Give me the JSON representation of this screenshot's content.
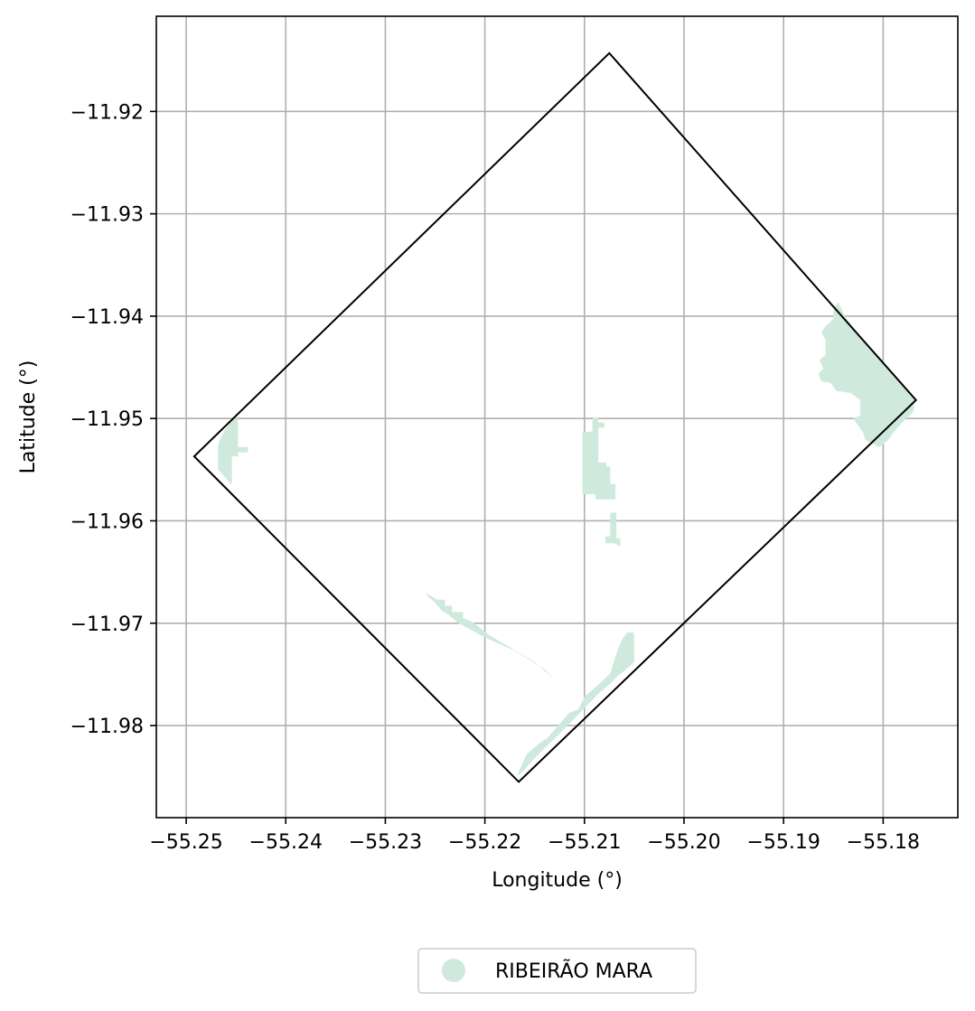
{
  "chart_data": {
    "type": "map",
    "xlabel": "Longitude (°)",
    "ylabel": "Latitude (°)",
    "xlim": [
      -55.253,
      -55.1725
    ],
    "ylim": [
      -11.989,
      -11.9107
    ],
    "grid": true,
    "x_ticks": [
      -55.25,
      -55.24,
      -55.23,
      -55.22,
      -55.21,
      -55.2,
      -55.19,
      -55.18
    ],
    "x_tick_labels": [
      "−55.25",
      "−55.24",
      "−55.23",
      "−55.22",
      "−55.21",
      "−55.20",
      "−55.19",
      "−55.18"
    ],
    "y_ticks": [
      -11.92,
      -11.93,
      -11.94,
      -11.95,
      -11.96,
      -11.97,
      -11.98
    ],
    "y_tick_labels": [
      "−11.92",
      "−11.93",
      "−11.94",
      "−11.95",
      "−11.96",
      "−11.97",
      "−11.98"
    ],
    "boundary": {
      "name": "",
      "stroke": "#000000",
      "coordinates": [
        [
          -55.2075,
          -11.9143
        ],
        [
          -55.1767,
          -11.9482
        ],
        [
          -55.2166,
          -11.9855
        ],
        [
          -55.2492,
          -11.9537
        ],
        [
          -55.2075,
          -11.9143
        ]
      ]
    },
    "legend": {
      "placement": "bottom-center",
      "entries": [
        {
          "label": "RIBEIRÃO MARA",
          "color": "#cfeadd",
          "marker": "circle"
        }
      ]
    },
    "areas": [
      {
        "name": "RIBEIRÃO MARA",
        "color": "#cfeadd",
        "polygons": [
          [
            [
              -55.2458,
              -11.9507
            ],
            [
              -55.2454,
              -11.95
            ],
            [
              -55.2448,
              -11.95
            ],
            [
              -55.2448,
              -11.9528
            ],
            [
              -55.2438,
              -11.9528
            ],
            [
              -55.2438,
              -11.9533
            ],
            [
              -55.2448,
              -11.9533
            ],
            [
              -55.2448,
              -11.9537
            ],
            [
              -55.2454,
              -11.9537
            ],
            [
              -55.2454,
              -11.9565
            ],
            [
              -55.2468,
              -11.955
            ],
            [
              -55.2468,
              -11.9527
            ],
            [
              -55.2466,
              -11.952
            ],
            [
              -55.2462,
              -11.9513
            ]
          ],
          [
            [
              -55.2102,
              -11.9513
            ],
            [
              -55.2092,
              -11.9513
            ],
            [
              -55.2092,
              -11.95
            ],
            [
              -55.209,
              -11.9499
            ],
            [
              -55.2086,
              -11.9499
            ],
            [
              -55.2086,
              -11.9504
            ],
            [
              -55.208,
              -11.9504
            ],
            [
              -55.208,
              -11.9509
            ],
            [
              -55.2086,
              -11.9509
            ],
            [
              -55.2086,
              -11.9543
            ],
            [
              -55.2078,
              -11.9543
            ],
            [
              -55.2078,
              -11.9547
            ],
            [
              -55.2074,
              -11.9547
            ],
            [
              -55.2074,
              -11.9564
            ],
            [
              -55.2069,
              -11.9564
            ],
            [
              -55.2069,
              -11.9579
            ],
            [
              -55.2089,
              -11.9579
            ],
            [
              -55.2089,
              -11.9574
            ],
            [
              -55.2102,
              -11.9574
            ]
          ],
          [
            [
              -55.2074,
              -11.9592
            ],
            [
              -55.2068,
              -11.9592
            ],
            [
              -55.2068,
              -11.9617
            ],
            [
              -55.2064,
              -11.9617
            ],
            [
              -55.2064,
              -11.9625
            ],
            [
              -55.207,
              -11.9622
            ],
            [
              -55.2079,
              -11.9622
            ],
            [
              -55.2079,
              -11.9615
            ],
            [
              -55.2074,
              -11.9615
            ]
          ],
          [
            [
              -55.226,
              -11.967
            ],
            [
              -55.2248,
              -11.9677
            ],
            [
              -55.224,
              -11.9677
            ],
            [
              -55.224,
              -11.9683
            ],
            [
              -55.2233,
              -11.9683
            ],
            [
              -55.2233,
              -11.9689
            ],
            [
              -55.2222,
              -11.9689
            ],
            [
              -55.2222,
              -11.9695
            ],
            [
              -55.2212,
              -11.9699
            ],
            [
              -55.2195,
              -11.9712
            ],
            [
              -55.215,
              -11.9738
            ],
            [
              -55.213,
              -11.9755
            ],
            [
              -55.214,
              -11.9745
            ],
            [
              -55.217,
              -11.9727
            ],
            [
              -55.22,
              -11.9714
            ],
            [
              -55.2215,
              -11.9706
            ],
            [
              -55.2228,
              -11.9699
            ],
            [
              -55.2236,
              -11.9692
            ],
            [
              -55.2243,
              -11.9688
            ],
            [
              -55.225,
              -11.968
            ],
            [
              -55.2257,
              -11.9674
            ]
          ],
          [
            [
              -55.2168,
              -11.9849
            ],
            [
              -55.2158,
              -11.9828
            ],
            [
              -55.2145,
              -11.9817
            ],
            [
              -55.2137,
              -11.9812
            ],
            [
              -55.2122,
              -11.9795
            ],
            [
              -55.2116,
              -11.9788
            ],
            [
              -55.2106,
              -11.9784
            ],
            [
              -55.21,
              -11.9772
            ],
            [
              -55.2086,
              -11.976
            ],
            [
              -55.2074,
              -11.9749
            ],
            [
              -55.207,
              -11.9736
            ],
            [
              -55.2066,
              -11.9724
            ],
            [
              -55.2061,
              -11.9714
            ],
            [
              -55.2057,
              -11.9709
            ],
            [
              -55.2051,
              -11.9709
            ],
            [
              -55.205,
              -11.9712
            ],
            [
              -55.205,
              -11.9738
            ],
            [
              -55.2058,
              -11.9745
            ],
            [
              -55.2066,
              -11.9751
            ],
            [
              -55.2074,
              -11.9759
            ],
            [
              -55.2086,
              -11.9769
            ],
            [
              -55.2098,
              -11.9781
            ],
            [
              -55.2108,
              -11.9791
            ],
            [
              -55.2118,
              -11.9801
            ],
            [
              -55.2128,
              -11.9811
            ],
            [
              -55.214,
              -11.9822
            ],
            [
              -55.2152,
              -11.9834
            ],
            [
              -55.2163,
              -11.9846
            ]
          ],
          [
            [
              -55.1845,
              -11.9386
            ],
            [
              -55.185,
              -11.9393
            ],
            [
              -55.185,
              -11.9403
            ],
            [
              -55.1858,
              -11.941
            ],
            [
              -55.1862,
              -11.9416
            ],
            [
              -55.1858,
              -11.9423
            ],
            [
              -55.1858,
              -11.9438
            ],
            [
              -55.1864,
              -11.9443
            ],
            [
              -55.186,
              -11.9451
            ],
            [
              -55.1865,
              -11.9456
            ],
            [
              -55.1862,
              -11.9464
            ],
            [
              -55.1853,
              -11.9465
            ],
            [
              -55.1847,
              -11.9473
            ],
            [
              -55.1833,
              -11.9475
            ],
            [
              -55.1823,
              -11.9482
            ],
            [
              -55.1823,
              -11.9497
            ],
            [
              -55.183,
              -11.95
            ],
            [
              -55.182,
              -11.9514
            ],
            [
              -55.1818,
              -11.9521
            ],
            [
              -55.1804,
              -11.9528
            ],
            [
              -55.1795,
              -11.9521
            ],
            [
              -55.179,
              -11.9514
            ],
            [
              -55.1782,
              -11.9505
            ],
            [
              -55.177,
              -11.9494
            ],
            [
              -55.1768,
              -11.9483
            ],
            [
              -55.1785,
              -11.9463
            ],
            [
              -55.1806,
              -11.944
            ],
            [
              -55.1826,
              -11.9416
            ],
            [
              -55.1838,
              -11.9401
            ]
          ]
        ]
      }
    ]
  }
}
